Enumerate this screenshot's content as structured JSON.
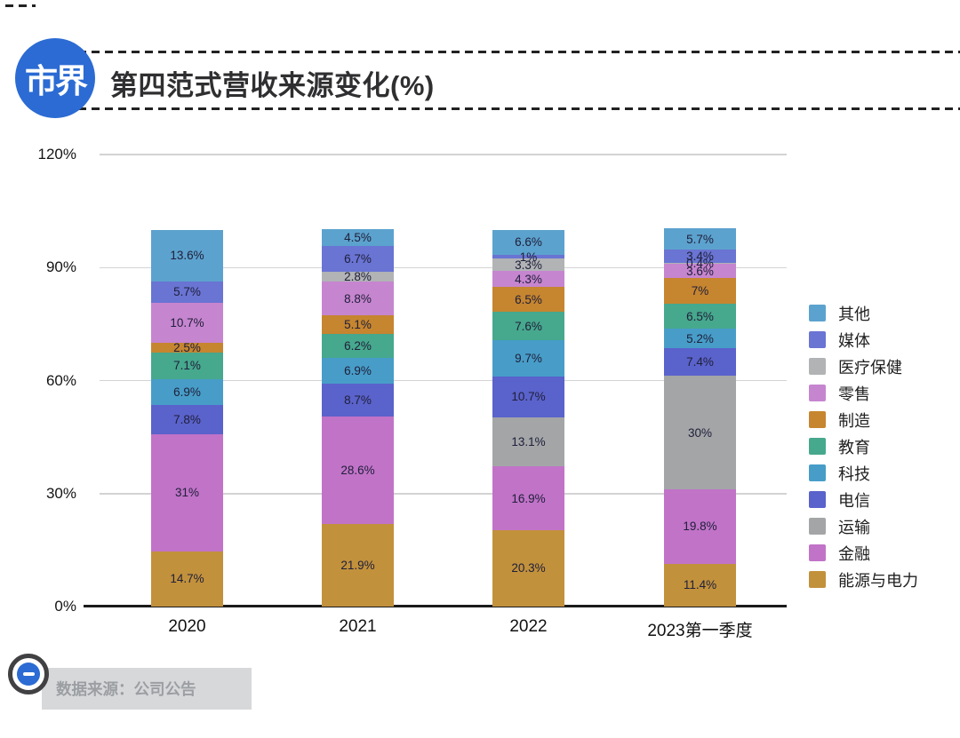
{
  "header": {
    "logo_text": "市界",
    "title": "第四范式营收来源变化(%)"
  },
  "chart_data": {
    "type": "bar",
    "stacked": true,
    "unit": "%",
    "title": "第四范式营收来源变化(%)",
    "categories": [
      "2020",
      "2021",
      "2022",
      "2023第一季度"
    ],
    "y_axis": {
      "ticks": [
        "120%",
        "90%",
        "60%",
        "30%",
        "0%"
      ],
      "min": 0,
      "max": 120,
      "grid": true
    },
    "legend_position": "right",
    "series": [
      {
        "id": "other",
        "name": "其他",
        "color": "#5CA2CE",
        "values": [
          13.6,
          4.5,
          6.6,
          5.7
        ]
      },
      {
        "id": "media",
        "name": "媒体",
        "color": "#6974D3",
        "values": [
          5.7,
          6.7,
          1,
          3.4
        ]
      },
      {
        "id": "healthcare",
        "name": "医疗保健",
        "color": "#B1B3B5",
        "values": [
          null,
          2.8,
          3.3,
          0.4
        ]
      },
      {
        "id": "retail",
        "name": "零售",
        "color": "#C685CF",
        "values": [
          10.7,
          8.8,
          4.3,
          3.6
        ]
      },
      {
        "id": "manufacturing",
        "name": "制造",
        "color": "#C6852F",
        "values": [
          2.5,
          5.1,
          6.5,
          7
        ]
      },
      {
        "id": "education",
        "name": "教育",
        "color": "#46A88D",
        "values": [
          7.1,
          6.2,
          7.6,
          6.5
        ]
      },
      {
        "id": "technology",
        "name": "科技",
        "color": "#479DC8",
        "values": [
          6.9,
          6.9,
          9.7,
          5.2
        ]
      },
      {
        "id": "telecom",
        "name": "电信",
        "color": "#5A62CB",
        "values": [
          7.8,
          8.7,
          10.7,
          7.4
        ]
      },
      {
        "id": "transportation",
        "name": "运输",
        "color": "#A3A5A7",
        "values": [
          null,
          null,
          13.1,
          30
        ]
      },
      {
        "id": "finance",
        "name": "金融",
        "color": "#C173C8",
        "values": [
          31,
          28.6,
          16.9,
          19.8
        ]
      },
      {
        "id": "energy",
        "name": "能源与电力",
        "color": "#C2913C",
        "values": [
          14.7,
          21.9,
          20.3,
          11.4
        ]
      }
    ]
  },
  "footer": {
    "source_label": "数据来源：公司公告"
  },
  "colors": {
    "logo_blue": "#2B6BD3",
    "grid": "#D3D3D3",
    "axis": "#1B1B1B"
  }
}
